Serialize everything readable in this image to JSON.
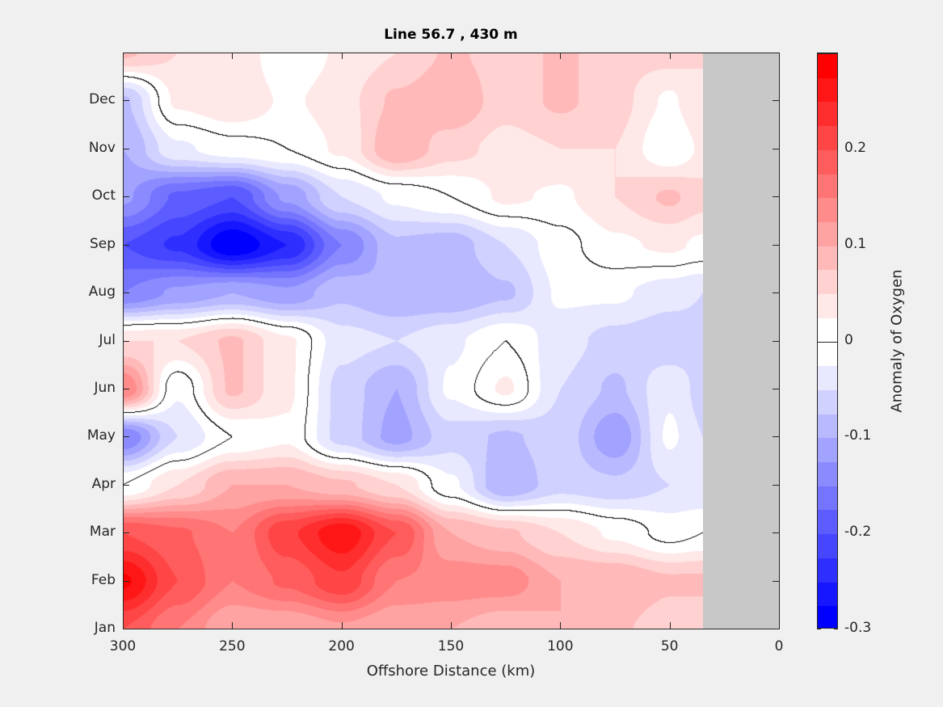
{
  "chart_data": {
    "type": "heatmap",
    "subtype": "filled-contour",
    "title": "Line 56.7 , 430 m",
    "xlabel": "Offshore Distance (km)",
    "ylabel": "",
    "colorbar_label": "Anomaly of Oxygen",
    "xlim": [
      300,
      0
    ],
    "ylim": [
      1,
      13
    ],
    "no_data_region_km": [
      35,
      0
    ],
    "no_data_color": "#c8c8c8",
    "x_ticks": [
      {
        "v": 300,
        "label": "300"
      },
      {
        "v": 250,
        "label": "250"
      },
      {
        "v": 200,
        "label": "200"
      },
      {
        "v": 150,
        "label": "150"
      },
      {
        "v": 100,
        "label": "100"
      },
      {
        "v": 50,
        "label": "50"
      },
      {
        "v": 0,
        "label": "0"
      }
    ],
    "y_ticks": [
      {
        "v": 1,
        "label": "Jan"
      },
      {
        "v": 2,
        "label": "Feb"
      },
      {
        "v": 3,
        "label": "Mar"
      },
      {
        "v": 4,
        "label": "Apr"
      },
      {
        "v": 5,
        "label": "May"
      },
      {
        "v": 6,
        "label": "Jun"
      },
      {
        "v": 7,
        "label": "Jul"
      },
      {
        "v": 8,
        "label": "Aug"
      },
      {
        "v": 9,
        "label": "Sep"
      },
      {
        "v": 10,
        "label": "Oct"
      },
      {
        "v": 11,
        "label": "Nov"
      },
      {
        "v": 12,
        "label": "Dec"
      }
    ],
    "colorbar": {
      "range": [
        -0.3,
        0.3
      ],
      "level_step": 0.025,
      "ticks": [
        {
          "v": 0.2,
          "label": "0.2"
        },
        {
          "v": 0.1,
          "label": "0.1"
        },
        {
          "v": 0,
          "label": "0"
        },
        {
          "v": -0.1,
          "label": "-0.1"
        },
        {
          "v": -0.2,
          "label": "-0.2"
        },
        {
          "v": -0.3,
          "label": "-0.3"
        }
      ],
      "neg_color": "#0000ff",
      "pos_color": "#ff0000"
    },
    "contour_level": 0,
    "grid_distance_km": [
      300,
      275,
      250,
      225,
      200,
      175,
      150,
      125,
      100,
      75,
      50,
      35
    ],
    "grid_month": [
      1,
      2,
      3,
      4,
      5,
      6,
      7,
      8,
      9,
      10,
      11,
      12,
      13
    ],
    "values": [
      [
        0.2,
        0.15,
        0.1,
        0.1,
        0.12,
        0.1,
        0.1,
        0.08,
        0.1,
        0.08,
        0.06,
        0.06
      ],
      [
        0.28,
        0.2,
        0.15,
        0.18,
        0.22,
        0.15,
        0.14,
        0.14,
        0.1,
        0.1,
        0.08,
        0.08
      ],
      [
        0.2,
        0.18,
        0.15,
        0.22,
        0.27,
        0.2,
        0.1,
        0.08,
        0.05,
        0.02,
        -0.01,
        0.0
      ],
      [
        0.0,
        0.05,
        0.1,
        0.1,
        0.08,
        0.05,
        -0.02,
        -0.1,
        -0.06,
        -0.07,
        -0.05,
        -0.05
      ],
      [
        -0.15,
        -0.05,
        0.0,
        0.02,
        -0.06,
        -0.11,
        -0.06,
        -0.08,
        -0.06,
        -0.12,
        -0.02,
        -0.05
      ],
      [
        0.15,
        -0.02,
        0.08,
        0.03,
        -0.06,
        -0.1,
        -0.02,
        0.03,
        -0.05,
        -0.08,
        -0.03,
        -0.06
      ],
      [
        0.05,
        0.05,
        0.08,
        0.03,
        -0.04,
        -0.05,
        -0.03,
        0.0,
        -0.04,
        -0.06,
        -0.07,
        -0.06
      ],
      [
        -0.15,
        -0.12,
        -0.1,
        -0.12,
        -0.08,
        -0.1,
        -0.1,
        -0.08,
        -0.02,
        -0.02,
        -0.04,
        -0.05
      ],
      [
        -0.2,
        -0.23,
        -0.3,
        -0.25,
        -0.15,
        -0.08,
        -0.09,
        -0.05,
        -0.01,
        0.02,
        0.03,
        0.02
      ],
      [
        -0.12,
        -0.18,
        -0.2,
        -0.12,
        -0.05,
        -0.02,
        0.0,
        0.03,
        0.02,
        0.05,
        0.08,
        0.06
      ],
      [
        -0.1,
        -0.03,
        -0.01,
        0.0,
        0.03,
        0.1,
        0.06,
        0.04,
        0.05,
        0.05,
        0.0,
        0.03
      ],
      [
        -0.08,
        0.03,
        0.05,
        0.02,
        0.04,
        0.08,
        0.1,
        0.06,
        0.08,
        0.06,
        0.02,
        0.05
      ],
      [
        0.08,
        0.05,
        0.05,
        0.0,
        0.03,
        0.05,
        0.08,
        0.06,
        0.08,
        0.06,
        0.06,
        0.05
      ]
    ]
  }
}
